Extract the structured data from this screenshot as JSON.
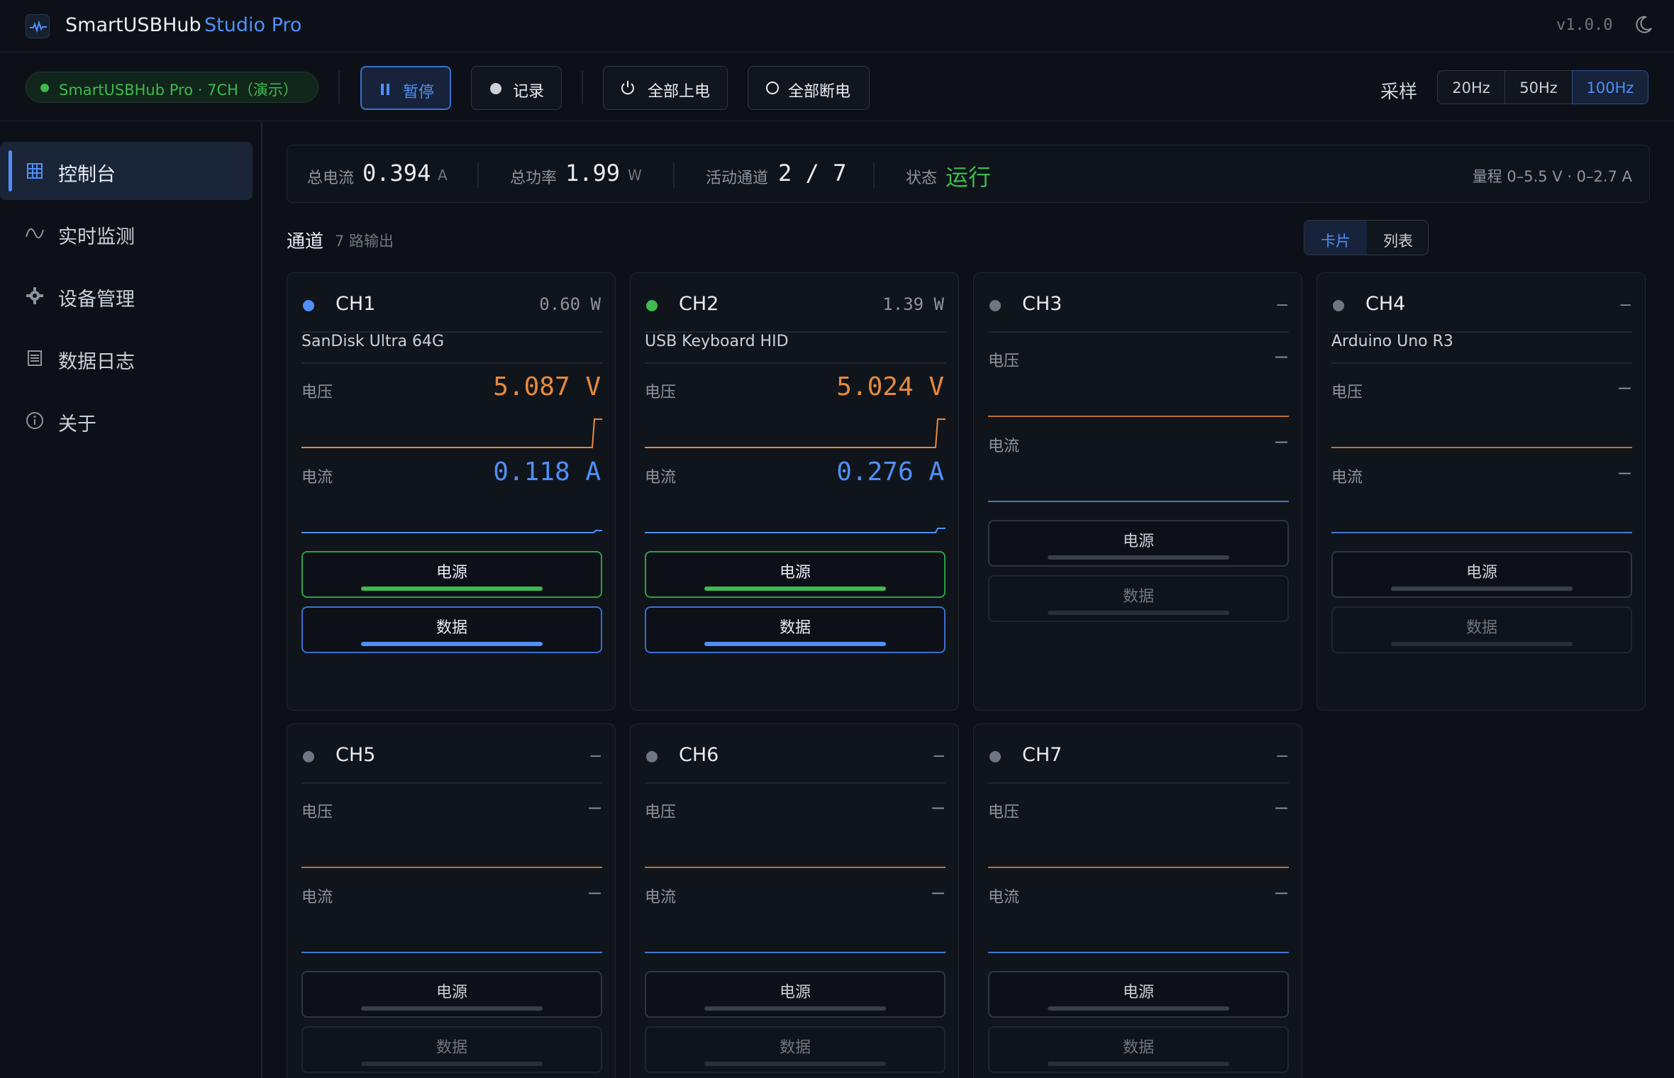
{
  "app": {
    "name": "SmartUSBHub",
    "edition": "Studio Pro",
    "version": "v1.0.0"
  },
  "toolbar": {
    "device_status": "SmartUSBHub Pro · 7CH（演示）",
    "pause_label": "暂停",
    "record_label": "记录",
    "all_on_label": "全部上电",
    "all_off_label": "全部断电",
    "sample_label": "采样",
    "sample_rates": [
      "20Hz",
      "50Hz",
      "100Hz"
    ],
    "sample_rate_selected": "100Hz"
  },
  "sidebar": {
    "items": [
      {
        "label": "控制台",
        "icon": "grid-icon",
        "active": true
      },
      {
        "label": "实时监测",
        "icon": "wave-icon",
        "active": false
      },
      {
        "label": "设备管理",
        "icon": "gear-icon",
        "active": false
      },
      {
        "label": "数据日志",
        "icon": "log-icon",
        "active": false
      },
      {
        "label": "关于",
        "icon": "info-icon",
        "active": false
      }
    ]
  },
  "stats": {
    "total_current_label": "总电流",
    "total_current": "0.394",
    "total_current_unit": "A",
    "total_power_label": "总功率",
    "total_power": "1.99",
    "total_power_unit": "W",
    "active_label": "活动通道",
    "active_value": "2 / 7",
    "status_label": "状态",
    "status_value": "运行",
    "range": "量程 0–5.5 V · 0–2.7 A"
  },
  "channels_section": {
    "title": "通道",
    "subtitle": "7 路输出",
    "view_modes": [
      "卡片",
      "列表"
    ],
    "view_selected": "卡片"
  },
  "metric_labels": {
    "voltage": "电压",
    "current": "电流",
    "power_button": "电源",
    "data_button": "数据",
    "off_dash": "—"
  },
  "channels": [
    {
      "name": "CH1",
      "device": "SanDisk Ultra 64G",
      "active": true,
      "power": "0.60 W",
      "voltage": "5.087 V",
      "current": "0.118 A",
      "dot_color": "#4f8ff7"
    },
    {
      "name": "CH2",
      "device": "USB Keyboard HID",
      "active": true,
      "power": "1.39 W",
      "voltage": "5.024 V",
      "current": "0.276 A",
      "dot_color": "#3fb950"
    },
    {
      "name": "CH3",
      "device": "",
      "active": false,
      "power": "—",
      "voltage": "—",
      "current": "—"
    },
    {
      "name": "CH4",
      "device": "Arduino Uno R3",
      "active": false,
      "power": "—",
      "voltage": "—",
      "current": "—"
    },
    {
      "name": "CH5",
      "device": "",
      "active": false,
      "power": "—",
      "voltage": "—",
      "current": "—"
    },
    {
      "name": "CH6",
      "device": "",
      "active": false,
      "power": "—",
      "voltage": "—",
      "current": "—"
    },
    {
      "name": "CH7",
      "device": "",
      "active": false,
      "power": "—",
      "voltage": "—",
      "current": "—"
    }
  ],
  "colors": {
    "accent": "#4f8ff7",
    "ok": "#3fb950",
    "voltage": "#e8893c",
    "current": "#4f8ff7",
    "background": "#0d1117"
  }
}
